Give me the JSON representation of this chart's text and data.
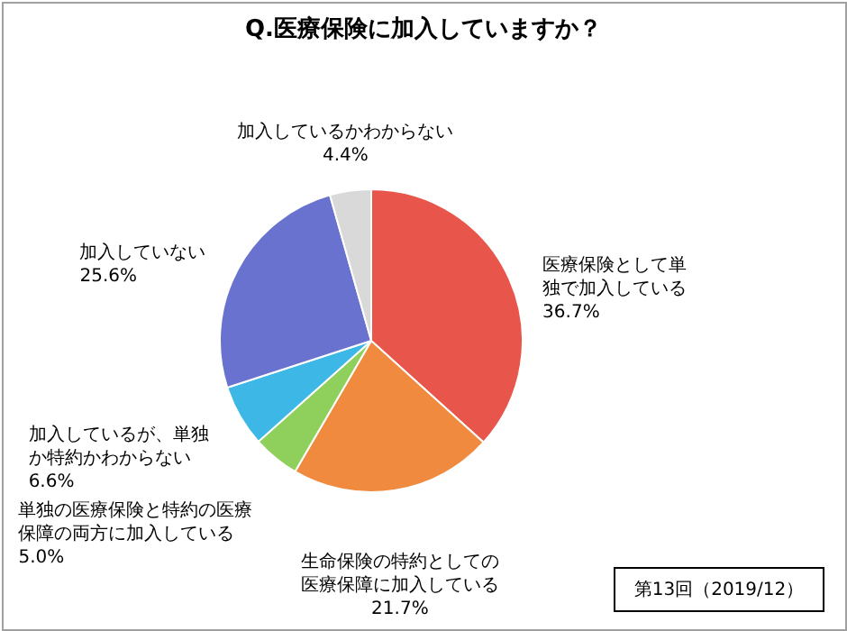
{
  "chart_data": {
    "type": "pie",
    "title": "Q.医療保険に加入していますか？",
    "categories": [
      "医療保険として単独で加入している",
      "生命保険の特約としての医療保障に加入している",
      "単独の医療保険と特約の医療保障の両方に加入している",
      "加入しているが、単独か特約かわからない",
      "加入していない",
      "加入しているかわからない"
    ],
    "values": [
      36.7,
      21.7,
      5.0,
      6.6,
      25.6,
      4.4
    ],
    "value_labels": [
      "36.7%",
      "21.7%",
      "5.0%",
      "6.6%",
      "25.6%",
      "4.4%"
    ],
    "colors": [
      "#e8554a",
      "#f08a3e",
      "#8fd05c",
      "#3db7e6",
      "#6a72cf",
      "#d9d9d9"
    ],
    "annotations": [
      "第13回（2019/12）"
    ]
  }
}
